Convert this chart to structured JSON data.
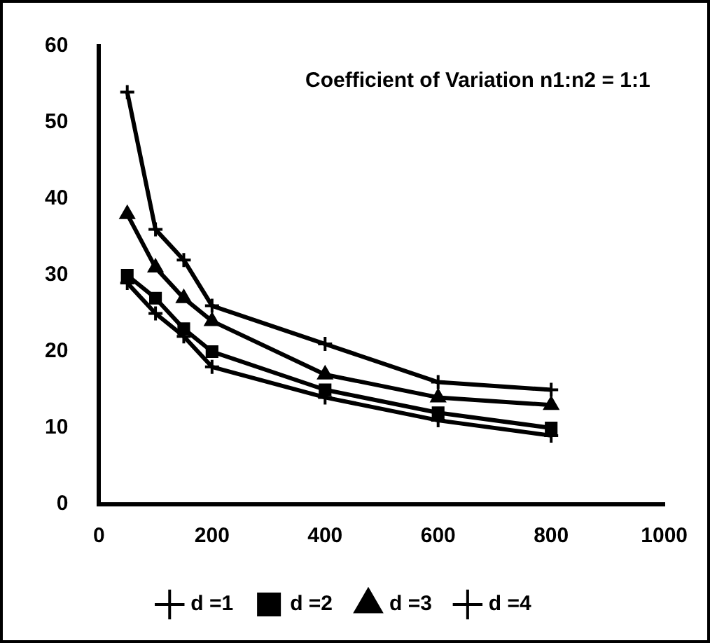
{
  "chart_data": {
    "type": "line",
    "title": "Coefficient of Variation n1:n2 = 1:1",
    "x": [
      50,
      100,
      150,
      200,
      400,
      600,
      800
    ],
    "xlim": [
      0,
      1000
    ],
    "xticks": [
      0,
      200,
      400,
      600,
      800,
      1000
    ],
    "ylim": [
      0,
      60
    ],
    "yticks": [
      0,
      10,
      20,
      30,
      40,
      50,
      60
    ],
    "grid": false,
    "legend": "bottom",
    "line_style": "solid",
    "series": [
      {
        "name": "d =1",
        "color": "#000000",
        "marker": "cross",
        "values": [
          29,
          25,
          22,
          18,
          14,
          11,
          9
        ]
      },
      {
        "name": "d =2",
        "color": "#000000",
        "marker": "square",
        "values": [
          30,
          27,
          23,
          20,
          15,
          12,
          10
        ]
      },
      {
        "name": "d =3",
        "color": "#000000",
        "marker": "triangle",
        "values": [
          38,
          31,
          27,
          24,
          17,
          14,
          13
        ]
      },
      {
        "name": "d =4",
        "color": "#000000",
        "marker": "cross",
        "values": [
          54,
          36,
          32,
          26,
          21,
          16,
          15
        ]
      }
    ]
  }
}
